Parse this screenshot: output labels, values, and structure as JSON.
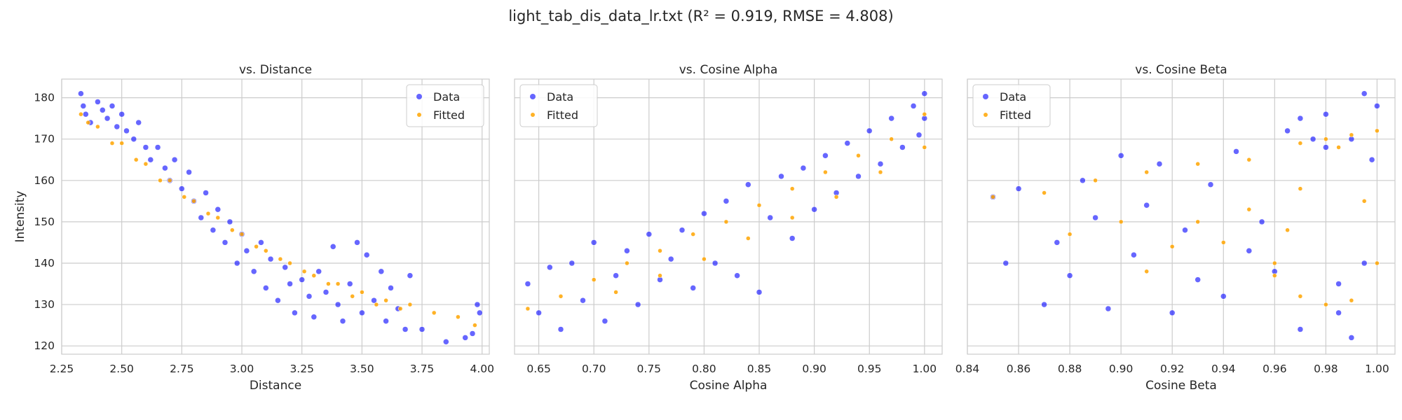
{
  "figure": {
    "title": "light_tab_dis_data_lr.txt (R² = 0.919, RMSE = 4.808)"
  },
  "colors": {
    "data": "#0000ff",
    "fitted": "#ffa500",
    "grid": "#cccccc",
    "spine": "#cccccc",
    "text": "#262626"
  },
  "chart_data": [
    {
      "type": "scatter",
      "title": "vs. Distance",
      "xlabel": "Distance",
      "ylabel": "Intensity",
      "xlim": [
        2.25,
        4.03
      ],
      "ylim": [
        118,
        184.5
      ],
      "xticks": [
        "2.25",
        "2.50",
        "2.75",
        "3.00",
        "3.25",
        "3.50",
        "3.75",
        "4.00"
      ],
      "yticks": [
        "120",
        "130",
        "140",
        "150",
        "160",
        "170",
        "180"
      ],
      "grid": true,
      "legend": "top-right",
      "series": [
        {
          "name": "Data",
          "points": [
            [
              2.33,
              181
            ],
            [
              2.34,
              178
            ],
            [
              2.35,
              176
            ],
            [
              2.37,
              174
            ],
            [
              2.4,
              179
            ],
            [
              2.42,
              177
            ],
            [
              2.44,
              175
            ],
            [
              2.46,
              178
            ],
            [
              2.48,
              173
            ],
            [
              2.5,
              176
            ],
            [
              2.52,
              172
            ],
            [
              2.55,
              170
            ],
            [
              2.57,
              174
            ],
            [
              2.6,
              168
            ],
            [
              2.62,
              165
            ],
            [
              2.65,
              168
            ],
            [
              2.68,
              163
            ],
            [
              2.7,
              160
            ],
            [
              2.72,
              165
            ],
            [
              2.75,
              158
            ],
            [
              2.78,
              162
            ],
            [
              2.8,
              155
            ],
            [
              2.83,
              151
            ],
            [
              2.85,
              157
            ],
            [
              2.88,
              148
            ],
            [
              2.9,
              153
            ],
            [
              2.93,
              145
            ],
            [
              2.95,
              150
            ],
            [
              2.98,
              140
            ],
            [
              3.0,
              147
            ],
            [
              3.02,
              143
            ],
            [
              3.05,
              138
            ],
            [
              3.08,
              145
            ],
            [
              3.1,
              134
            ],
            [
              3.12,
              141
            ],
            [
              3.15,
              131
            ],
            [
              3.18,
              139
            ],
            [
              3.2,
              135
            ],
            [
              3.22,
              128
            ],
            [
              3.25,
              136
            ],
            [
              3.28,
              132
            ],
            [
              3.3,
              127
            ],
            [
              3.32,
              138
            ],
            [
              3.35,
              133
            ],
            [
              3.38,
              144
            ],
            [
              3.4,
              130
            ],
            [
              3.42,
              126
            ],
            [
              3.45,
              135
            ],
            [
              3.48,
              145
            ],
            [
              3.5,
              128
            ],
            [
              3.52,
              142
            ],
            [
              3.55,
              131
            ],
            [
              3.58,
              138
            ],
            [
              3.6,
              126
            ],
            [
              3.62,
              134
            ],
            [
              3.65,
              129
            ],
            [
              3.68,
              124
            ],
            [
              3.7,
              137
            ],
            [
              3.75,
              124
            ],
            [
              3.85,
              121
            ],
            [
              3.93,
              122
            ],
            [
              3.96,
              123
            ],
            [
              3.98,
              130
            ],
            [
              3.99,
              128
            ]
          ]
        },
        {
          "name": "Fitted",
          "points": [
            [
              2.33,
              176
            ],
            [
              2.4,
              173
            ],
            [
              2.5,
              169
            ],
            [
              2.6,
              164
            ],
            [
              2.7,
              160
            ],
            [
              2.8,
              155
            ],
            [
              2.9,
              151
            ],
            [
              3.0,
              147
            ],
            [
              3.1,
              143
            ],
            [
              3.2,
              140
            ],
            [
              3.3,
              137
            ],
            [
              3.4,
              135
            ],
            [
              3.5,
              133
            ],
            [
              3.6,
              131
            ],
            [
              3.7,
              130
            ],
            [
              3.8,
              128
            ],
            [
              3.9,
              127
            ],
            [
              3.97,
              125
            ],
            [
              2.36,
              174
            ],
            [
              2.46,
              169
            ],
            [
              2.56,
              165
            ],
            [
              2.66,
              160
            ],
            [
              2.76,
              156
            ],
            [
              2.86,
              152
            ],
            [
              2.96,
              148
            ],
            [
              3.06,
              144
            ],
            [
              3.16,
              141
            ],
            [
              3.26,
              138
            ],
            [
              3.36,
              135
            ],
            [
              3.46,
              132
            ],
            [
              3.56,
              130
            ],
            [
              3.66,
              129
            ]
          ]
        }
      ]
    },
    {
      "type": "scatter",
      "title": "vs. Cosine Alpha",
      "xlabel": "Cosine Alpha",
      "ylabel": "",
      "xlim": [
        0.628,
        1.016
      ],
      "ylim": [
        118,
        184.5
      ],
      "xticks": [
        "0.65",
        "0.70",
        "0.75",
        "0.80",
        "0.85",
        "0.90",
        "0.95",
        "1.00"
      ],
      "yticks": [],
      "grid": true,
      "legend": "top-left",
      "series": [
        {
          "name": "Data",
          "points": [
            [
              0.64,
              135
            ],
            [
              0.65,
              128
            ],
            [
              0.66,
              139
            ],
            [
              0.67,
              124
            ],
            [
              0.68,
              140
            ],
            [
              0.69,
              131
            ],
            [
              0.7,
              145
            ],
            [
              0.71,
              126
            ],
            [
              0.72,
              137
            ],
            [
              0.73,
              143
            ],
            [
              0.74,
              130
            ],
            [
              0.75,
              147
            ],
            [
              0.76,
              136
            ],
            [
              0.77,
              141
            ],
            [
              0.78,
              148
            ],
            [
              0.79,
              134
            ],
            [
              0.8,
              152
            ],
            [
              0.81,
              140
            ],
            [
              0.82,
              155
            ],
            [
              0.83,
              137
            ],
            [
              0.84,
              159
            ],
            [
              0.85,
              133
            ],
            [
              0.86,
              151
            ],
            [
              0.87,
              161
            ],
            [
              0.88,
              146
            ],
            [
              0.89,
              163
            ],
            [
              0.9,
              153
            ],
            [
              0.91,
              166
            ],
            [
              0.92,
              157
            ],
            [
              0.93,
              169
            ],
            [
              0.94,
              161
            ],
            [
              0.95,
              172
            ],
            [
              0.96,
              164
            ],
            [
              0.97,
              175
            ],
            [
              0.98,
              168
            ],
            [
              0.99,
              178
            ],
            [
              1.0,
              181
            ],
            [
              1.0,
              175
            ],
            [
              0.995,
              171
            ]
          ]
        },
        {
          "name": "Fitted",
          "points": [
            [
              0.64,
              129
            ],
            [
              0.67,
              132
            ],
            [
              0.7,
              136
            ],
            [
              0.73,
              140
            ],
            [
              0.76,
              143
            ],
            [
              0.79,
              147
            ],
            [
              0.82,
              150
            ],
            [
              0.85,
              154
            ],
            [
              0.88,
              158
            ],
            [
              0.91,
              162
            ],
            [
              0.94,
              166
            ],
            [
              0.97,
              170
            ],
            [
              1.0,
              176
            ],
            [
              0.72,
              133
            ],
            [
              0.76,
              137
            ],
            [
              0.8,
              141
            ],
            [
              0.84,
              146
            ],
            [
              0.88,
              151
            ],
            [
              0.92,
              156
            ],
            [
              0.96,
              162
            ],
            [
              1.0,
              168
            ]
          ]
        }
      ]
    },
    {
      "type": "scatter",
      "title": "vs. Cosine Beta",
      "xlabel": "Cosine Beta",
      "ylabel": "",
      "xlim": [
        0.84,
        1.007
      ],
      "ylim": [
        118,
        184.5
      ],
      "xticks": [
        "0.84",
        "0.86",
        "0.88",
        "0.90",
        "0.92",
        "0.94",
        "0.96",
        "0.98",
        "1.00"
      ],
      "yticks": [],
      "grid": true,
      "legend": "top-left",
      "series": [
        {
          "name": "Data",
          "points": [
            [
              0.85,
              156
            ],
            [
              0.855,
              140
            ],
            [
              0.86,
              158
            ],
            [
              0.87,
              130
            ],
            [
              0.875,
              145
            ],
            [
              0.88,
              137
            ],
            [
              0.885,
              160
            ],
            [
              0.89,
              151
            ],
            [
              0.895,
              129
            ],
            [
              0.9,
              166
            ],
            [
              0.905,
              142
            ],
            [
              0.91,
              154
            ],
            [
              0.915,
              164
            ],
            [
              0.92,
              128
            ],
            [
              0.925,
              148
            ],
            [
              0.93,
              136
            ],
            [
              0.935,
              159
            ],
            [
              0.94,
              132
            ],
            [
              0.945,
              167
            ],
            [
              0.95,
              143
            ],
            [
              0.955,
              150
            ],
            [
              0.96,
              138
            ],
            [
              0.965,
              172
            ],
            [
              0.97,
              124
            ],
            [
              0.975,
              170
            ],
            [
              0.98,
              176
            ],
            [
              0.985,
              128
            ],
            [
              0.99,
              122
            ],
            [
              0.995,
              181
            ],
            [
              1.0,
              178
            ],
            [
              0.998,
              165
            ],
            [
              0.99,
              170
            ],
            [
              0.98,
              168
            ],
            [
              0.97,
              175
            ],
            [
              0.985,
              135
            ],
            [
              0.995,
              140
            ]
          ]
        },
        {
          "name": "Fitted",
          "points": [
            [
              0.85,
              156
            ],
            [
              0.87,
              157
            ],
            [
              0.89,
              160
            ],
            [
              0.91,
              162
            ],
            [
              0.93,
              164
            ],
            [
              0.95,
              165
            ],
            [
              0.97,
              169
            ],
            [
              0.98,
              170
            ],
            [
              0.99,
              171
            ],
            [
              1.0,
              172
            ],
            [
              0.97,
              158
            ],
            [
              0.965,
              148
            ],
            [
              0.96,
              140
            ],
            [
              0.97,
              132
            ],
            [
              0.98,
              130
            ],
            [
              0.99,
              131
            ],
            [
              1.0,
              140
            ],
            [
              0.995,
              155
            ],
            [
              0.985,
              168
            ],
            [
              0.88,
              147
            ],
            [
              0.9,
              150
            ],
            [
              0.92,
              144
            ],
            [
              0.94,
              145
            ],
            [
              0.96,
              137
            ],
            [
              0.93,
              150
            ],
            [
              0.95,
              153
            ],
            [
              0.91,
              138
            ]
          ]
        }
      ]
    }
  ]
}
